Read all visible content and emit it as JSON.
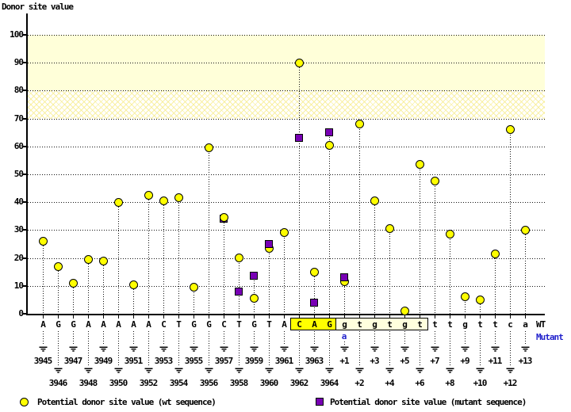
{
  "title": "Donor site value",
  "colors": {
    "wt_marker": "#FFFF00",
    "mutant_marker": "#7800B4",
    "mutant_text": "#2222CC",
    "band_solid": "#FFFFD9",
    "exon_box": "#FFFF00",
    "intron_box": "#FFFFDD"
  },
  "chart_data": {
    "type": "scatter",
    "title": "Donor site value",
    "ylabel": "Donor site value",
    "ylim": [
      0,
      100
    ],
    "yticks": [
      0,
      10,
      20,
      30,
      40,
      50,
      60,
      70,
      80,
      90,
      100
    ],
    "grid": "dotted horizontal gridlines, dotted vertical stems from baseline to each point",
    "bands": [
      {
        "from": 80,
        "to": 100,
        "style": "solid"
      },
      {
        "from": 70,
        "to": 80,
        "style": "crosshatch"
      }
    ],
    "series": [
      {
        "name": "Potential donor site value (wt sequence)",
        "marker": "circle",
        "color": "#FFFF00"
      },
      {
        "name": "Potential donor site value (mutant sequence)",
        "marker": "square",
        "color": "#7800B4"
      }
    ],
    "columns": [
      {
        "base": "A",
        "pos": "3945",
        "row": "upper",
        "wt": 26
      },
      {
        "base": "G",
        "pos": "3946",
        "row": "lower",
        "wt": 17
      },
      {
        "base": "G",
        "pos": "3947",
        "row": "upper",
        "wt": 11
      },
      {
        "base": "A",
        "pos": "3948",
        "row": "lower",
        "wt": 19.5
      },
      {
        "base": "A",
        "pos": "3949",
        "row": "upper",
        "wt": 19
      },
      {
        "base": "A",
        "pos": "3950",
        "row": "lower",
        "wt": 40
      },
      {
        "base": "A",
        "pos": "3951",
        "row": "upper",
        "wt": 10.5
      },
      {
        "base": "A",
        "pos": "3952",
        "row": "lower",
        "wt": 42.5
      },
      {
        "base": "C",
        "pos": "3953",
        "row": "upper",
        "wt": 40.5
      },
      {
        "base": "T",
        "pos": "3954",
        "row": "lower",
        "wt": 41.5
      },
      {
        "base": "G",
        "pos": "3955",
        "row": "upper",
        "wt": 9.5
      },
      {
        "base": "G",
        "pos": "3956",
        "row": "lower",
        "wt": 59.5
      },
      {
        "base": "C",
        "pos": "3957",
        "row": "upper",
        "wt": 34.5,
        "mut": 34,
        "mut_behind": true
      },
      {
        "base": "T",
        "pos": "3958",
        "row": "lower",
        "wt": 20,
        "mut": 8
      },
      {
        "base": "G",
        "pos": "3959",
        "row": "upper",
        "wt": 5.5,
        "mut": 13.5
      },
      {
        "base": "T",
        "pos": "3960",
        "row": "lower",
        "wt": 23.5,
        "mut": 25
      },
      {
        "base": "A",
        "pos": "3961",
        "row": "upper",
        "wt": 29
      },
      {
        "base": "C",
        "pos": "3962",
        "row": "lower",
        "wt": 90,
        "mut": 63
      },
      {
        "base": "A",
        "pos": "3963",
        "row": "upper",
        "wt": 15,
        "mut": 4
      },
      {
        "base": "G",
        "pos": "3964",
        "row": "lower",
        "wt": 60.5,
        "mut": 65
      },
      {
        "base": "g",
        "pos": "+1",
        "row": "upper",
        "wt": 11.5,
        "mut": 13
      },
      {
        "base": "t",
        "pos": "+2",
        "row": "lower",
        "wt": 68
      },
      {
        "base": "g",
        "pos": "+3",
        "row": "upper",
        "wt": 40.5
      },
      {
        "base": "t",
        "pos": "+4",
        "row": "lower",
        "wt": 30.5
      },
      {
        "base": "g",
        "pos": "+5",
        "row": "upper",
        "wt": 1
      },
      {
        "base": "t",
        "pos": "+6",
        "row": "lower",
        "wt": 53.5
      },
      {
        "base": "t",
        "pos": "+7",
        "row": "upper",
        "wt": 47.5
      },
      {
        "base": "t",
        "pos": "+8",
        "row": "lower",
        "wt": 28.5
      },
      {
        "base": "g",
        "pos": "+9",
        "row": "upper",
        "wt": 6
      },
      {
        "base": "t",
        "pos": "+10",
        "row": "lower",
        "wt": 5
      },
      {
        "base": "t",
        "pos": "+11",
        "row": "upper",
        "wt": 21.5
      },
      {
        "base": "c",
        "pos": "+12",
        "row": "lower",
        "wt": 66
      },
      {
        "base": "a",
        "pos": "+13",
        "row": "upper",
        "wt": 30
      }
    ]
  },
  "sequence": {
    "wt_label": "WT",
    "mutant_label": "Mutant",
    "mutant_base": {
      "pos": "+1",
      "base": "a"
    },
    "boxes": [
      {
        "from_pos": "3962",
        "to_pos": "3964",
        "text": "CAG",
        "kind": "exon"
      },
      {
        "from_pos": "+1",
        "to_pos": "+6",
        "text": "gtgtgt",
        "kind": "intron"
      }
    ]
  },
  "legend": [
    {
      "marker": "circle",
      "label": "Potential donor site value (wt sequence)"
    },
    {
      "marker": "square",
      "label": "Potential donor site value (mutant sequence)"
    }
  ]
}
